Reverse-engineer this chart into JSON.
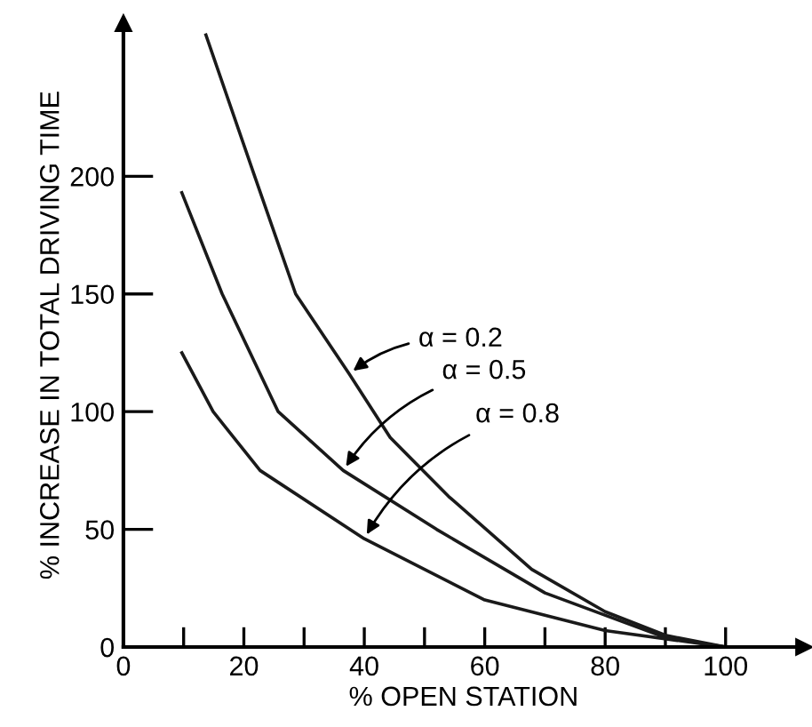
{
  "chart_data": {
    "type": "line",
    "xlabel": "% OPEN STATION",
    "ylabel": "% INCREASE IN TOTAL DRIVING TIME",
    "xlim": [
      0,
      113
    ],
    "ylim": [
      0,
      265
    ],
    "xticks": [
      0,
      {
        "value": 10,
        "label": null
      },
      20,
      {
        "value": 30,
        "label": null
      },
      40,
      {
        "value": 50,
        "label": null
      },
      60,
      {
        "value": 70,
        "label": null
      },
      80,
      {
        "value": 90,
        "label": null
      },
      100
    ],
    "yticks": [
      0,
      50,
      100,
      150,
      200
    ],
    "grid": false,
    "legend": false,
    "marker": "none",
    "line_style": "solid",
    "series": [
      {
        "color": "#1a1a1a",
        "x": [
          13.7,
          21.8,
          28.6,
          37.5,
          44.3,
          54,
          67.8,
          80,
          90,
          100
        ],
        "values": [
          260,
          200,
          150,
          116,
          89,
          64,
          33,
          15,
          5,
          0
        ]
      },
      {
        "color": "#1a1a1a",
        "x": [
          9.7,
          16.4,
          25.7,
          36.5,
          52,
          70,
          90,
          100
        ],
        "values": [
          193,
          150,
          100,
          75,
          50,
          23,
          4,
          0
        ]
      },
      {
        "color": "#1a1a1a",
        "x": [
          9.7,
          14.9,
          22.7,
          40,
          60,
          80,
          100
        ],
        "values": [
          125,
          100,
          75,
          46,
          20,
          7,
          0
        ]
      }
    ],
    "annotations": [
      {
        "text": "α = 0.2",
        "x": 37.5,
        "y": 116
      },
      {
        "text": "α = 0.5",
        "x": 36.5,
        "y": 75
      },
      {
        "text": "α = 0.8",
        "x": 40,
        "y": 46
      }
    ]
  }
}
